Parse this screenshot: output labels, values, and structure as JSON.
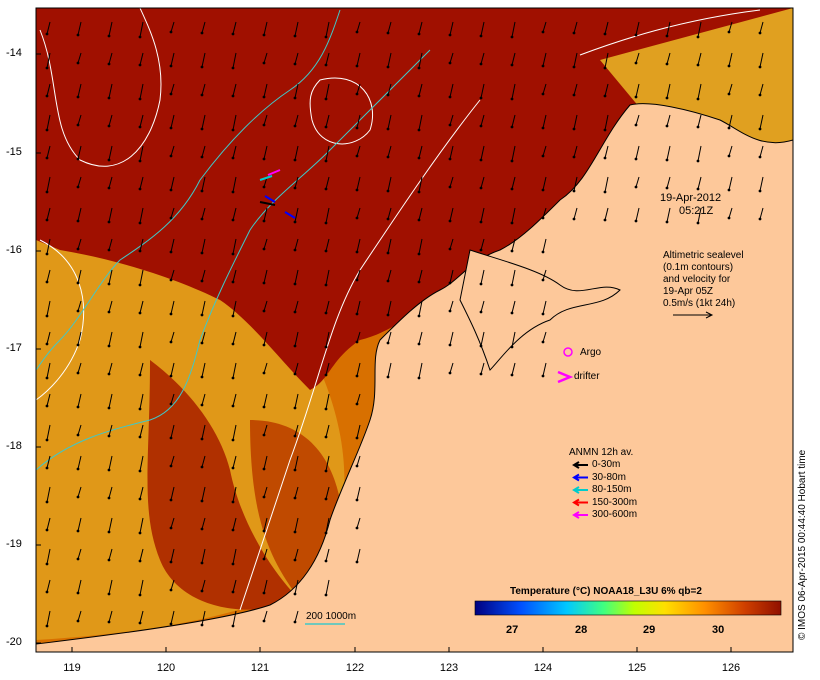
{
  "map": {
    "lat_ticks": [
      "-14",
      "-15",
      "-16",
      "-17",
      "-18",
      "-19",
      "-20"
    ],
    "lon_ticks": [
      "119",
      "120",
      "121",
      "122",
      "123",
      "124",
      "125",
      "126"
    ],
    "date_line1": "19-Apr-2012",
    "date_line2": "05:21Z",
    "altimetry_note": [
      "Altimetric sealevel",
      "(0.1m contours)",
      "and velocity for",
      "19-Apr 05Z",
      "0.5m/s (1kt 24h)"
    ],
    "argo_label": "Argo",
    "drifter_label": "drifter",
    "anmn_title": "ANMN 12h av.",
    "anmn_legend": [
      {
        "label": "0-30m",
        "color": "#000000"
      },
      {
        "label": "30-80m",
        "color": "#0000ff"
      },
      {
        "label": "80-150m",
        "color": "#00cccc"
      },
      {
        "label": "150-300m",
        "color": "#ff0000"
      },
      {
        "label": "300-600m",
        "color": "#ff00ff"
      }
    ],
    "isobath_label": "200  1000m",
    "colorbar_title": "Temperature (°C) NOAA18_L3U 6% qb=2",
    "colorbar_ticks": [
      "27",
      "28",
      "29",
      "30"
    ],
    "credit": "© IMOS 06-Apr-2015 00:44:40 Hobart time",
    "colors": {
      "land": "#fdc89a",
      "warm": "#a01000",
      "mid": "#d06000",
      "cool": "#e09010",
      "contour": "#ffffff",
      "isobath": "#40c8c8"
    }
  }
}
